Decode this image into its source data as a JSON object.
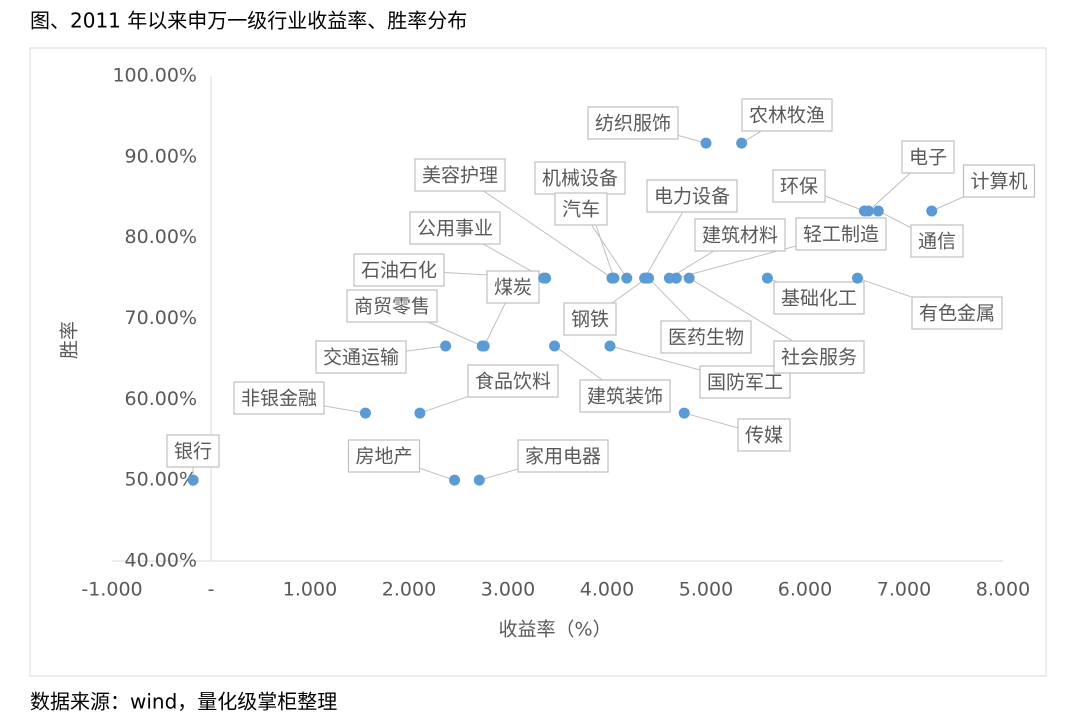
{
  "title": "图、2011 年以来申万一级行业收益率、胜率分布",
  "source": "数据来源：wind，量化级掌柜整理",
  "chart_data": {
    "type": "scatter",
    "x_label": "收益率（%）",
    "y_label": "胜率",
    "color": "#5b9bd5",
    "grid": false,
    "categories": [
      "银行",
      "非银金融",
      "食品饮料",
      "房地产",
      "家用电器",
      "交通运输",
      "商贸零售",
      "煤炭",
      "石油石化",
      "公用事业",
      "建筑装饰",
      "国防军工",
      "美容护理",
      "机械设备",
      "汽车",
      "电力设备",
      "钢铁",
      "医药生物",
      "建筑材料",
      "轻工制造",
      "社会服务",
      "基础化工",
      "有色金属",
      "纺织服饰",
      "农林牧渔",
      "环保",
      "电子",
      "通信",
      "计算机",
      "传媒"
    ],
    "x": [
      -0.18,
      1.56,
      2.11,
      2.46,
      2.71,
      2.37,
      2.74,
      2.76,
      3.38,
      3.36,
      3.47,
      4.03,
      4.05,
      4.07,
      4.2,
      4.38,
      4.4,
      4.42,
      4.63,
      4.7,
      4.83,
      5.62,
      6.53,
      5.0,
      5.36,
      6.6,
      6.64,
      6.74,
      7.28,
      4.78
    ],
    "values": [
      50,
      58.3,
      58.3,
      50,
      50,
      66.6,
      66.6,
      66.6,
      75,
      75,
      66.6,
      66.6,
      75,
      75,
      75,
      75,
      75,
      75,
      75,
      75,
      75,
      75,
      75,
      91.7,
      91.7,
      83.3,
      83.3,
      83.3,
      83.3,
      58.3
    ],
    "xlim": [
      -1,
      8
    ],
    "xticks": [
      {
        "value": -1,
        "label": "-1.000"
      },
      {
        "value": 0,
        "label": "-"
      },
      {
        "value": 1,
        "label": "1.000"
      },
      {
        "value": 2,
        "label": "2.000"
      },
      {
        "value": 3,
        "label": "3.000"
      },
      {
        "value": 4,
        "label": "4.000"
      },
      {
        "value": 5,
        "label": "5.000"
      },
      {
        "value": 6,
        "label": "6.000"
      },
      {
        "value": 7,
        "label": "7.000"
      },
      {
        "value": 8,
        "label": "8.000"
      }
    ],
    "ylim": [
      40,
      100
    ],
    "yticks": [
      {
        "value": 40,
        "label": "40.00%"
      },
      {
        "value": 50,
        "label": "50.00%"
      },
      {
        "value": 60,
        "label": "60.00%"
      },
      {
        "value": 70,
        "label": "70.00%"
      },
      {
        "value": 80,
        "label": "80.00%"
      },
      {
        "value": 90,
        "label": "90.00%"
      },
      {
        "value": 100,
        "label": "100.00%"
      }
    ]
  }
}
